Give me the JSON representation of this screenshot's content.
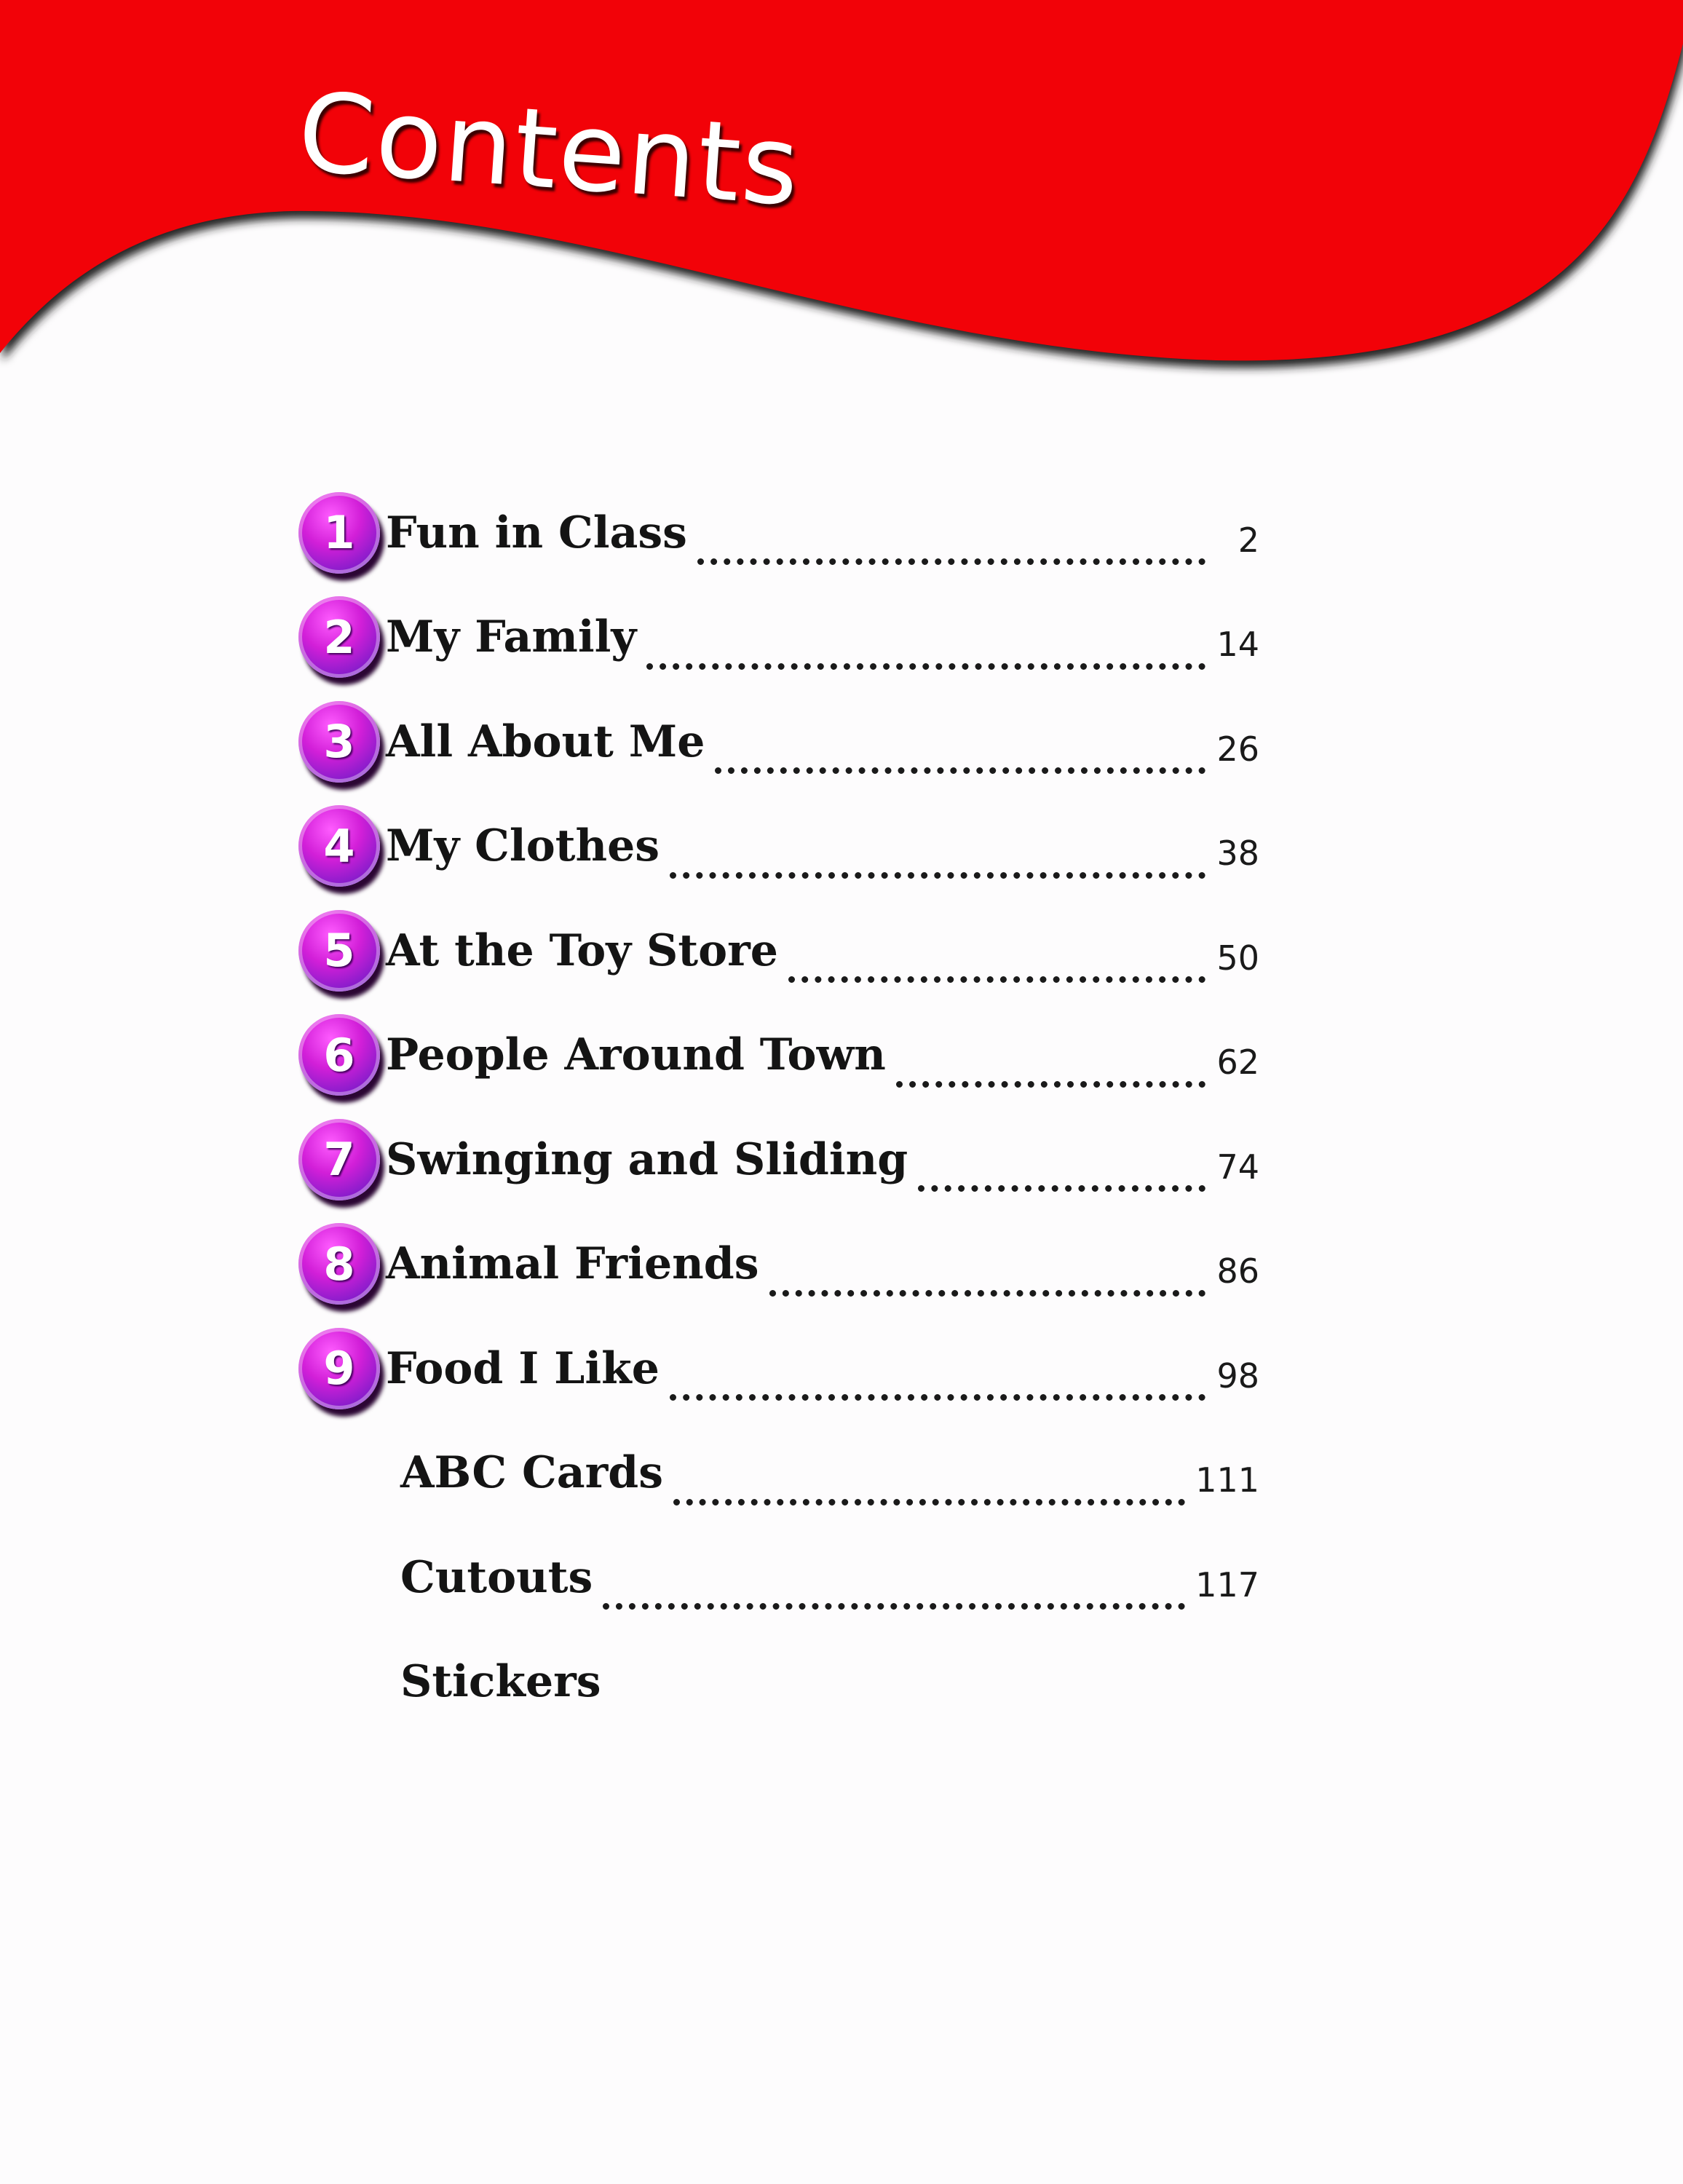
{
  "header": {
    "title": "Contents",
    "banner_color": "#f20208"
  },
  "entries": [
    {
      "number": "1",
      "title": "Fun in Class",
      "page": "2"
    },
    {
      "number": "2",
      "title": "My Family",
      "page": "14"
    },
    {
      "number": "3",
      "title": "All About Me",
      "page": "26"
    },
    {
      "number": "4",
      "title": "My Clothes",
      "page": "38"
    },
    {
      "number": "5",
      "title": "At the Toy Store",
      "page": "50"
    },
    {
      "number": "6",
      "title": "People Around Town",
      "page": "62"
    },
    {
      "number": "7",
      "title": "Swinging and Sliding",
      "page": "74"
    },
    {
      "number": "8",
      "title": "Animal Friends",
      "page": "86"
    },
    {
      "number": "9",
      "title": "Food I Like",
      "page": "98"
    }
  ],
  "extras": [
    {
      "title": "ABC Cards",
      "page": "111"
    },
    {
      "title": "Cutouts",
      "page": "117"
    },
    {
      "title": "Stickers"
    }
  ],
  "badge_color": "#c21fd6"
}
